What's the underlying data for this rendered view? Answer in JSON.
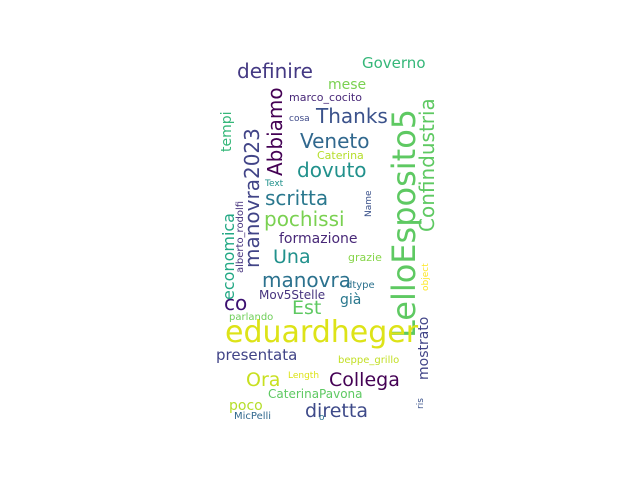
{
  "words": [
    {
      "text": "LelloEsposito5",
      "color": "#5ec962"
    },
    {
      "text": "eduardheger",
      "color": "#dde318"
    },
    {
      "text": "Confindustria",
      "color": "#5ec962"
    },
    {
      "text": "manovra2023",
      "color": "#414487"
    },
    {
      "text": "Abbiamo",
      "color": "#440154"
    },
    {
      "text": "definire",
      "color": "#443983"
    },
    {
      "text": "Veneto",
      "color": "#31688e"
    },
    {
      "text": "dovuto",
      "color": "#21918c"
    },
    {
      "text": "Thanks",
      "color": "#3b528b"
    },
    {
      "text": "scritta",
      "color": "#2a788e"
    },
    {
      "text": "pochissi",
      "color": "#7ad151"
    },
    {
      "text": "manovra",
      "color": "#2c728e"
    },
    {
      "text": "Una",
      "color": "#21918c"
    },
    {
      "text": "co",
      "color": "#3b0f70"
    },
    {
      "text": "Est",
      "color": "#5ec962"
    },
    {
      "text": "Collega",
      "color": "#440154"
    },
    {
      "text": "diretta",
      "color": "#3e4a89"
    },
    {
      "text": "Ora",
      "color": "#c8e020"
    },
    {
      "text": "economica",
      "color": "#22a884"
    },
    {
      "text": "Governo",
      "color": "#35b779"
    },
    {
      "text": "presentata",
      "color": "#414487"
    },
    {
      "text": "formazione",
      "color": "#482878"
    },
    {
      "text": "mese",
      "color": "#7ad151"
    },
    {
      "text": "tempi",
      "color": "#35b779"
    },
    {
      "text": "mostrato",
      "color": "#414487"
    },
    {
      "text": "poco",
      "color": "#b5de2b"
    },
    {
      "text": "già",
      "color": "#2a788e"
    },
    {
      "text": "CaterinaPavona",
      "color": "#5ec962"
    },
    {
      "text": "Mov5Stelle",
      "color": "#46337e"
    },
    {
      "text": "marco_cocito",
      "color": "#482878"
    },
    {
      "text": "Caterina",
      "color": "#b5de2b"
    },
    {
      "text": "grazie",
      "color": "#86d549"
    },
    {
      "text": "parlando",
      "color": "#6ece58"
    },
    {
      "text": "beppe_grillo",
      "color": "#c2df23"
    },
    {
      "text": "MicPelli",
      "color": "#31688e"
    },
    {
      "text": "alberto_rodolfi",
      "color": "#46337e"
    },
    {
      "text": "dtype",
      "color": "#2c728e"
    },
    {
      "text": "Length",
      "color": "#dde318"
    },
    {
      "text": "cosa",
      "color": "#3e4a89"
    },
    {
      "text": "Text",
      "color": "#21918c"
    },
    {
      "text": "Name",
      "color": "#3b528b"
    },
    {
      "text": "object",
      "color": "#fde725"
    },
    {
      "text": "ris",
      "color": "#3b528b"
    },
    {
      "text": "o",
      "color": "#2c728e"
    }
  ]
}
